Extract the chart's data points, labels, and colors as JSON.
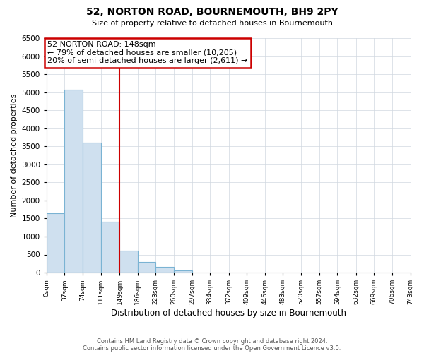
{
  "title": "52, NORTON ROAD, BOURNEMOUTH, BH9 2PY",
  "subtitle": "Size of property relative to detached houses in Bournemouth",
  "xlabel": "Distribution of detached houses by size in Bournemouth",
  "ylabel": "Number of detached properties",
  "bar_edges": [
    0,
    37,
    74,
    111,
    149,
    186,
    223,
    260,
    297,
    334,
    372,
    409,
    446,
    483,
    520,
    557,
    594,
    632,
    669,
    706,
    743
  ],
  "bar_heights": [
    1650,
    5080,
    3600,
    1420,
    610,
    300,
    155,
    60,
    0,
    0,
    0,
    0,
    0,
    0,
    0,
    0,
    0,
    0,
    0,
    0
  ],
  "bar_color": "#cfe0ef",
  "bar_edgecolor": "#7ab3d3",
  "property_line_x": 149,
  "property_line_color": "#cc0000",
  "annotation_title": "52 NORTON ROAD: 148sqm",
  "annotation_line1": "← 79% of detached houses are smaller (10,205)",
  "annotation_line2": "20% of semi-detached houses are larger (2,611) →",
  "annotation_box_edgecolor": "#cc0000",
  "ylim": [
    0,
    6500
  ],
  "yticks": [
    0,
    500,
    1000,
    1500,
    2000,
    2500,
    3000,
    3500,
    4000,
    4500,
    5000,
    5500,
    6000,
    6500
  ],
  "footer1": "Contains HM Land Registry data © Crown copyright and database right 2024.",
  "footer2": "Contains public sector information licensed under the Open Government Licence v3.0.",
  "background_color": "#ffffff",
  "grid_color": "#d0d8e0"
}
